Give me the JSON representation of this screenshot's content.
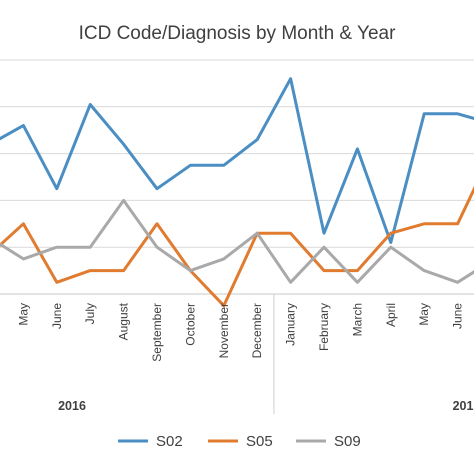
{
  "chart_data": {
    "type": "line",
    "title": "ICD Code/Diagnosis by Month & Year",
    "xlabel": "",
    "ylabel": "",
    "grid": true,
    "legend_position": "bottom",
    "categories": [
      "",
      "May",
      "June",
      "July",
      "August",
      "September",
      "October",
      "November",
      "December",
      "January",
      "February",
      "March",
      "April",
      "May",
      "June",
      ""
    ],
    "year_groups": [
      {
        "label": "2016",
        "start": 0,
        "end": 8
      },
      {
        "label": "201",
        "start": 9,
        "end": 15
      }
    ],
    "ylim": [
      0,
      10
    ],
    "series": [
      {
        "name": "S02",
        "color": "#4A8EC3",
        "values": [
          6.4,
          7.2,
          4.5,
          8.1,
          6.4,
          4.5,
          5.5,
          5.5,
          6.6,
          9.2,
          2.6,
          6.2,
          2.2,
          7.7,
          7.7,
          7.3
        ]
      },
      {
        "name": "S05",
        "color": "#E07B2F",
        "values": [
          1.7,
          3.0,
          0.5,
          1.0,
          1.0,
          3.0,
          1.0,
          -0.5,
          2.6,
          2.6,
          1.0,
          1.0,
          2.6,
          3.0,
          3.0,
          6.0
        ]
      },
      {
        "name": "S09",
        "color": "#A9A9A9",
        "values": [
          2.4,
          1.5,
          2.0,
          2.0,
          4.0,
          2.0,
          1.0,
          1.5,
          2.6,
          0.5,
          2.0,
          0.5,
          2.0,
          1.0,
          0.5,
          1.4
        ]
      }
    ]
  }
}
